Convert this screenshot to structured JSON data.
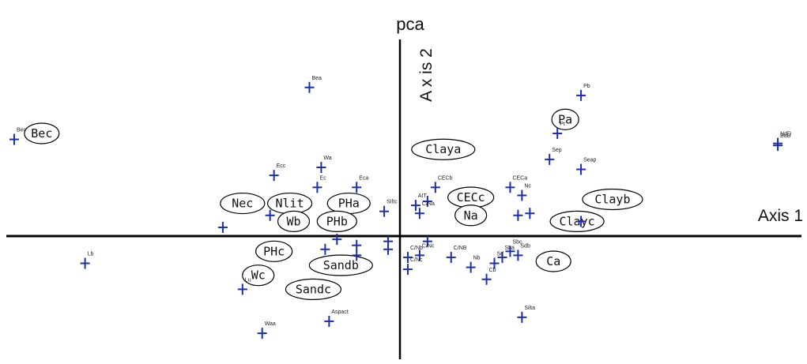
{
  "chart_data": {
    "type": "scatter",
    "title": "pca",
    "xlabel": "Axis 1",
    "ylabel": "A x is 2",
    "xlim": [
      -10,
      10
    ],
    "ylim": [
      -6,
      10
    ],
    "grid": false,
    "legend": "none",
    "colors": {
      "marker": "#1a2faa",
      "axis": "#000000",
      "text": "#111111"
    },
    "points": [
      {
        "label": "Bec",
        "x": -9.8,
        "y": 5.0
      },
      {
        "label": "Bea",
        "x": -2.3,
        "y": 7.6
      },
      {
        "label": "Pb",
        "x": 4.6,
        "y": 7.2
      },
      {
        "label": "Pt",
        "x": 4.0,
        "y": 5.3
      },
      {
        "label": "BdD",
        "x": 9.6,
        "y": 4.7
      },
      {
        "label": "NdD",
        "x": 9.6,
        "y": 4.8
      },
      {
        "label": "Sep",
        "x": 3.8,
        "y": 4.0
      },
      {
        "label": "Seap",
        "x": 4.6,
        "y": 3.5
      },
      {
        "label": "Ecc",
        "x": -3.2,
        "y": 3.2
      },
      {
        "label": "Wa",
        "x": -2.0,
        "y": 3.6
      },
      {
        "label": "Ec",
        "x": -2.1,
        "y": 2.6
      },
      {
        "label": "Eca",
        "x": -1.1,
        "y": 2.6
      },
      {
        "label": "CECb",
        "x": 0.9,
        "y": 2.6
      },
      {
        "label": "CECa",
        "x": 2.8,
        "y": 2.6
      },
      {
        "label": "Nc",
        "x": 3.1,
        "y": 2.2
      },
      {
        "label": "SIltc",
        "x": -0.4,
        "y": 1.4
      },
      {
        "label": "AIT",
        "x": 0.4,
        "y": 1.7
      },
      {
        "label": "",
        "x": 0.7,
        "y": 1.9
      },
      {
        "label": "C/Na",
        "x": 0.5,
        "y": 1.3
      },
      {
        "label": "",
        "x": 3.0,
        "y": 1.2
      },
      {
        "label": "",
        "x": 3.3,
        "y": 1.3
      },
      {
        "label": "",
        "x": -3.3,
        "y": 1.2
      },
      {
        "label": "",
        "x": -1.6,
        "y": 0.0
      },
      {
        "label": "",
        "x": -1.1,
        "y": -0.3
      },
      {
        "label": "",
        "x": -0.3,
        "y": -0.1
      },
      {
        "label": "",
        "x": 0.7,
        "y": -0.1
      },
      {
        "label": "Lb",
        "x": -8.0,
        "y": -1.2
      },
      {
        "label": "C/Nc",
        "x": 0.5,
        "y": -0.8
      },
      {
        "label": "C/Nb",
        "x": 0.2,
        "y": -0.9
      },
      {
        "label": "C/NB",
        "x": 1.3,
        "y": -0.9
      },
      {
        "label": "Nb",
        "x": 1.8,
        "y": -1.4
      },
      {
        "label": "Cb",
        "x": 2.2,
        "y": -2.0
      },
      {
        "label": "C/Nc",
        "x": 0.2,
        "y": -1.5
      },
      {
        "label": "Sba",
        "x": 2.6,
        "y": -0.9
      },
      {
        "label": "Sbc",
        "x": 2.8,
        "y": -0.6
      },
      {
        "label": "Sd",
        "x": 2.4,
        "y": -1.2
      },
      {
        "label": "Silta",
        "x": 3.1,
        "y": -3.9
      },
      {
        "label": "Sdb",
        "x": 3.0,
        "y": -0.8
      },
      {
        "label": "Lu",
        "x": -4.0,
        "y": -2.5
      },
      {
        "label": "Waa",
        "x": -3.5,
        "y": -4.7
      },
      {
        "label": "Aspact",
        "x": -1.8,
        "y": -4.1
      },
      {
        "label": "",
        "x": -1.9,
        "y": -0.5
      },
      {
        "label": "",
        "x": -1.1,
        "y": -0.8
      },
      {
        "label": "",
        "x": -4.5,
        "y": 0.6
      },
      {
        "label": "",
        "x": -0.3,
        "y": -0.5
      },
      {
        "label": "",
        "x": 4.6,
        "y": 0.9
      }
    ],
    "variable_labels": [
      {
        "label": "Bec",
        "x": -9.1,
        "y": 5.3,
        "w": 44
      },
      {
        "label": "Pa",
        "x": 4.2,
        "y": 6.0,
        "w": 34
      },
      {
        "label": "Claya",
        "x": 1.1,
        "y": 4.5,
        "w": 80
      },
      {
        "label": "Nec",
        "x": -4.0,
        "y": 1.8,
        "w": 56
      },
      {
        "label": "Nlit",
        "x": -2.8,
        "y": 1.8,
        "w": 56
      },
      {
        "label": "PHa",
        "x": -1.3,
        "y": 1.8,
        "w": 54
      },
      {
        "label": "CECc",
        "x": 1.8,
        "y": 2.1,
        "w": 58
      },
      {
        "label": "Clayb",
        "x": 5.4,
        "y": 2.0,
        "w": 76
      },
      {
        "label": "Wb",
        "x": -2.7,
        "y": 0.9,
        "w": 40
      },
      {
        "label": "PHb",
        "x": -1.6,
        "y": 0.9,
        "w": 50
      },
      {
        "label": "Na",
        "x": 1.8,
        "y": 1.2,
        "w": 40
      },
      {
        "label": "Clayc",
        "x": 4.5,
        "y": 0.9,
        "w": 68
      },
      {
        "label": "PHc",
        "x": -3.2,
        "y": -0.6,
        "w": 46
      },
      {
        "label": "Sandb",
        "x": -1.5,
        "y": -1.3,
        "w": 80
      },
      {
        "label": "Ca",
        "x": 3.9,
        "y": -1.1,
        "w": 44
      },
      {
        "label": "Wc",
        "x": -3.6,
        "y": -1.8,
        "w": 40
      },
      {
        "label": "Sandc",
        "x": -2.2,
        "y": -2.5,
        "w": 70
      }
    ]
  }
}
